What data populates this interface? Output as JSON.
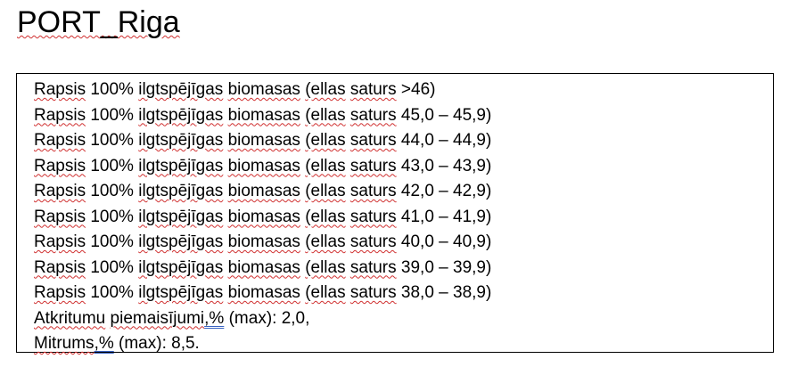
{
  "document": {
    "title": "PORT_Riga",
    "lines": [
      {
        "w1": "Rapsis",
        "t1": " 100% ",
        "w2": "ilgtspējīgas",
        "t2": " ",
        "w3": "biomasas",
        "t3": " ",
        "w4": "(ellas",
        "t4": " ",
        "w5": "saturs",
        "tail": " >46)"
      },
      {
        "w1": "Rapsis",
        "t1": " 100% ",
        "w2": "ilgtspējīgas",
        "t2": " ",
        "w3": "biomasas",
        "t3": " ",
        "w4": "(ellas",
        "t4": " ",
        "w5": "saturs",
        "tail": " 45,0 – 45,9)"
      },
      {
        "w1": "Rapsis",
        "t1": " 100% ",
        "w2": "ilgtspējīgas",
        "t2": " ",
        "w3": "biomasas",
        "t3": " ",
        "w4": "(ellas",
        "t4": " ",
        "w5": "saturs",
        "tail": " 44,0 – 44,9)"
      },
      {
        "w1": "Rapsis",
        "t1": " 100% ",
        "w2": "ilgtspējīgas",
        "t2": " ",
        "w3": "biomasas",
        "t3": " ",
        "w4": "(ellas",
        "t4": " ",
        "w5": "saturs",
        "tail": " 43,0 – 43,9)"
      },
      {
        "w1": "Rapsis",
        "t1": " 100% ",
        "w2": "ilgtspējīgas",
        "t2": " ",
        "w3": "biomasas",
        "t3": " ",
        "w4": "(ellas",
        "t4": " ",
        "w5": "saturs",
        "tail": " 42,0 – 42,9)"
      },
      {
        "w1": "Rapsis",
        "t1": " 100% ",
        "w2": "ilgtspējīgas",
        "t2": " ",
        "w3": "biomasas",
        "t3": " ",
        "w4": "(ellas",
        "t4": " ",
        "w5": "saturs",
        "tail": " 41,0 – 41,9)"
      },
      {
        "w1": "Rapsis",
        "t1": " 100% ",
        "w2": "ilgtspējīgas",
        "t2": " ",
        "w3": "biomasas",
        "t3": " ",
        "w4": "(ellas",
        "t4": " ",
        "w5": "saturs",
        "tail": " 40,0 – 40,9)"
      },
      {
        "w1": "Rapsis",
        "t1": " 100% ",
        "w2": "ilgtspējīgas",
        "t2": " ",
        "w3": "biomasas",
        "t3": " ",
        "w4": "(ellas",
        "t4": " ",
        "w5": "saturs",
        "tail": " 39,0 – 39,9)"
      },
      {
        "w1": "Rapsis",
        "t1": " 100% ",
        "w2": "ilgtspējīgas",
        "t2": " ",
        "w3": "biomasas",
        "t3": " ",
        "w4": "(ellas",
        "t4": " ",
        "w5": "saturs",
        "tail": " 38,0 – 38,9)"
      }
    ],
    "impurities": {
      "w1": "Atkritumu",
      "t1": " ",
      "w2": "piemaisījumi",
      "gr": ",%",
      "tail": " (max): 2,0,"
    },
    "moisture": {
      "w1": "Mitrums",
      "gr": ",%",
      "tail": " (max): 8,5."
    }
  },
  "colors": {
    "spelling_underline": "#d03030",
    "grammar_underline": "#3a63c2",
    "text": "#000000",
    "border": "#000000",
    "background": "#ffffff"
  }
}
